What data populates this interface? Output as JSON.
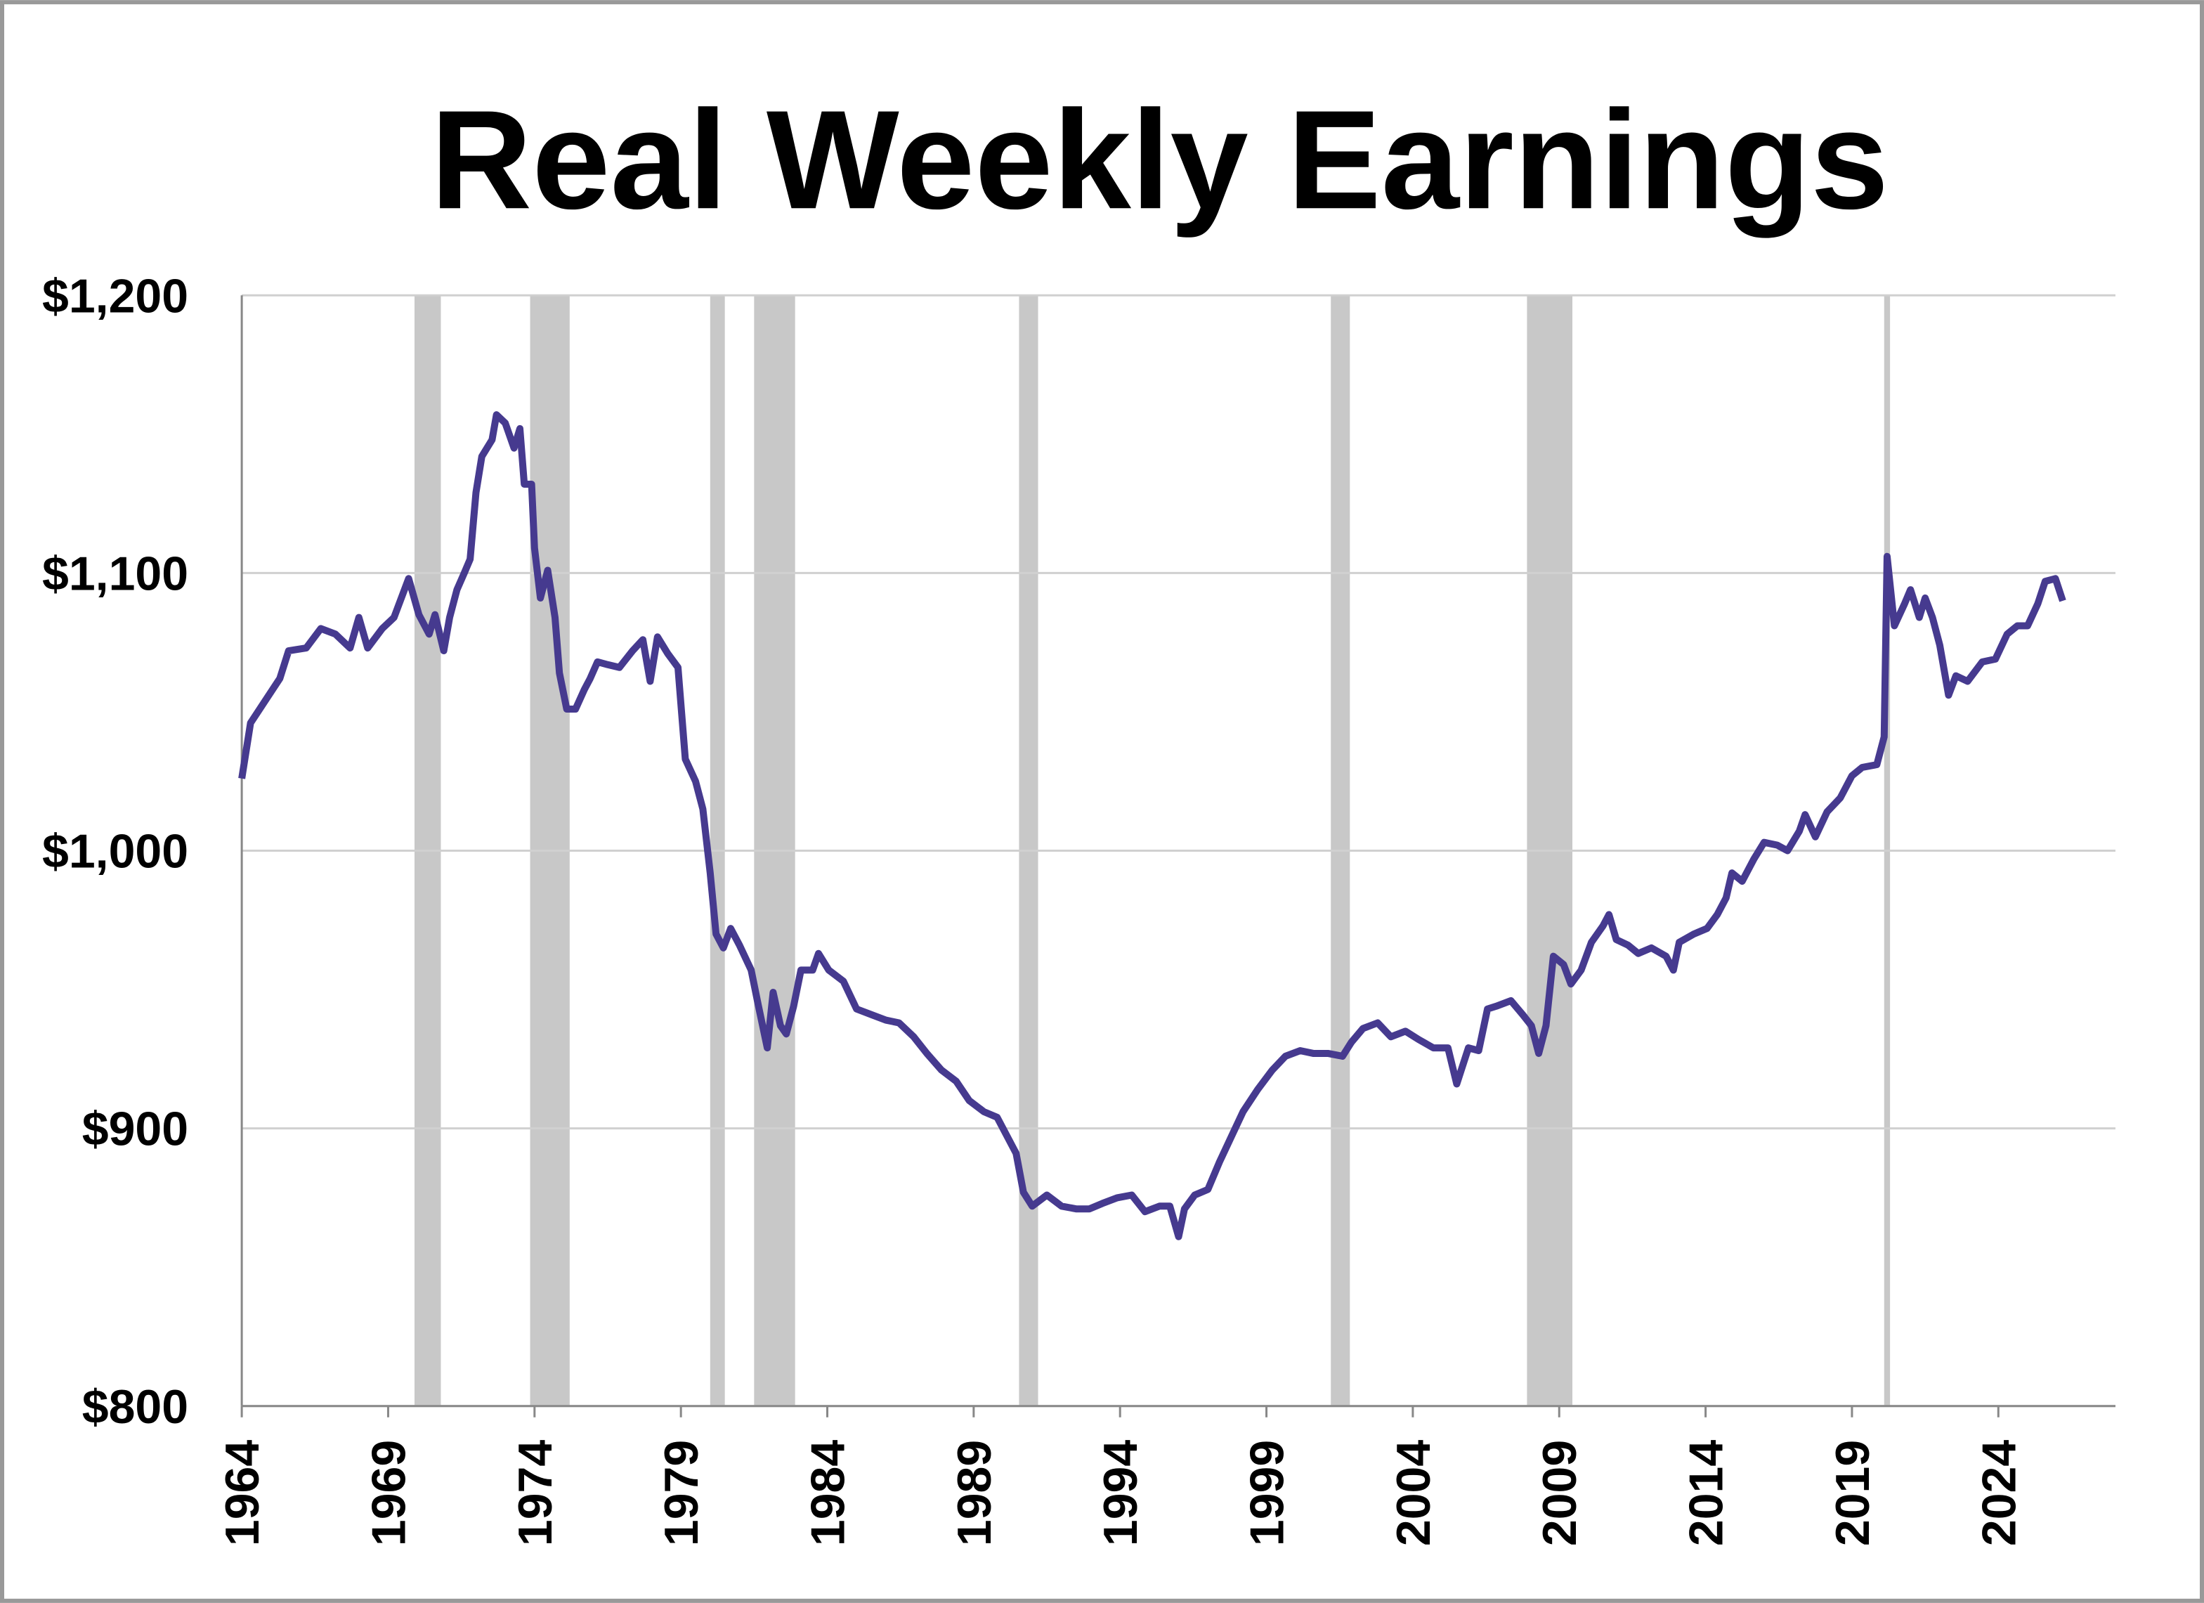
{
  "chart_data": {
    "type": "line",
    "title": "Real Weekly Earnings",
    "color": "#463a8f",
    "recession_color": "#c8c8c8",
    "x": [
      1964.0,
      1964.3,
      1964.8,
      1965.3,
      1965.6,
      1966.2,
      1966.7,
      1967.2,
      1967.7,
      1968.0,
      1968.3,
      1968.8,
      1969.2,
      1969.7,
      1970.05,
      1970.4,
      1970.6,
      1970.9,
      1971.1,
      1971.35,
      1971.6,
      1971.8,
      1972.0,
      1972.2,
      1972.55,
      1972.7,
      1973.0,
      1973.3,
      1973.5,
      1973.65,
      1973.9,
      1974.0,
      1974.2,
      1974.45,
      1974.7,
      1974.85,
      1975.1,
      1975.4,
      1975.7,
      1975.9,
      1976.15,
      1976.5,
      1976.9,
      1977.35,
      1977.7,
      1977.95,
      1978.2,
      1978.55,
      1978.9,
      1979.15,
      1979.5,
      1979.75,
      1980.0,
      1980.2,
      1980.45,
      1980.7,
      1981.0,
      1981.4,
      1981.65,
      1981.95,
      1982.15,
      1982.4,
      1982.6,
      1982.85,
      1983.1,
      1983.5,
      1983.7,
      1984.05,
      1984.55,
      1985.0,
      1985.5,
      1986.0,
      1986.45,
      1986.95,
      1987.4,
      1987.9,
      1988.4,
      1988.85,
      1989.35,
      1989.8,
      1990.2,
      1990.45,
      1990.7,
      1991.0,
      1991.5,
      1992.0,
      1992.5,
      1992.95,
      1993.4,
      1993.9,
      1994.4,
      1994.85,
      1995.35,
      1995.7,
      1996.0,
      1996.2,
      1996.55,
      1997.0,
      1997.4,
      1997.8,
      1998.2,
      1998.7,
      1999.2,
      1999.65,
      2000.15,
      2000.6,
      2001.1,
      2001.6,
      2001.9,
      2002.3,
      2002.8,
      2003.25,
      2003.75,
      2004.2,
      2004.7,
      2005.2,
      2005.5,
      2005.9,
      2006.25,
      2006.55,
      2006.85,
      2007.35,
      2007.75,
      2008.05,
      2008.3,
      2008.55,
      2008.8,
      2009.15,
      2009.4,
      2009.75,
      2010.1,
      2010.5,
      2010.7,
      2010.95,
      2011.35,
      2011.7,
      2012.15,
      2012.65,
      2012.9,
      2013.1,
      2013.6,
      2014.05,
      2014.4,
      2014.7,
      2014.9,
      2015.25,
      2015.65,
      2016.0,
      2016.45,
      2016.8,
      2017.2,
      2017.4,
      2017.75,
      2018.15,
      2018.6,
      2019.0,
      2019.35,
      2019.85,
      2020.1,
      2020.2,
      2020.45,
      2020.8,
      2021.0,
      2021.3,
      2021.5,
      2021.75,
      2022.0,
      2022.3,
      2022.55,
      2022.95,
      2023.45,
      2023.9,
      2024.3,
      2024.65,
      2025.0,
      2025.35,
      2025.6,
      2025.95,
      2026.2
    ],
    "values": [
      1026,
      1046,
      1054,
      1062,
      1072,
      1073,
      1080,
      1078,
      1073,
      1084,
      1073,
      1080,
      1084,
      1098,
      1085,
      1078,
      1085,
      1072,
      1084,
      1094,
      1100,
      1105,
      1129,
      1142,
      1148,
      1157,
      1154,
      1145,
      1152,
      1132,
      1132,
      1109,
      1091,
      1101,
      1084,
      1064,
      1051,
      1051,
      1058,
      1062,
      1068,
      1067,
      1066,
      1072,
      1076,
      1061,
      1077,
      1071,
      1066,
      1033,
      1025,
      1015,
      992,
      970,
      965,
      972,
      966,
      957,
      944,
      929,
      949,
      937,
      934,
      944,
      957,
      957,
      963,
      957,
      953,
      943,
      941,
      939,
      938,
      933,
      927,
      921,
      917,
      910,
      906,
      904,
      896,
      891,
      877,
      872,
      876,
      872,
      871,
      871,
      873,
      875,
      876,
      870,
      872,
      872,
      861,
      871,
      876,
      878,
      888,
      897,
      906,
      914,
      921,
      926,
      928,
      927,
      927,
      926,
      931,
      936,
      938,
      933,
      935,
      932,
      929,
      929,
      916,
      929,
      928,
      943,
      944,
      946,
      941,
      937,
      927,
      937,
      962,
      959,
      952,
      957,
      967,
      973,
      977,
      968,
      966,
      963,
      965,
      962,
      957,
      967,
      970,
      972,
      977,
      983,
      992,
      989,
      997,
      1003,
      1002,
      1000,
      1007,
      1013,
      1005,
      1014,
      1019,
      1027,
      1030,
      1031,
      1041,
      1106,
      1081,
      1089,
      1094,
      1084,
      1091,
      1084,
      1074,
      1056,
      1063,
      1061,
      1068,
      1069,
      1078,
      1081,
      1081,
      1089,
      1097,
      1098,
      1090
    ],
    "recessions": [
      [
        1969.9,
        1970.8
      ],
      [
        1973.85,
        1975.2
      ],
      [
        1980.0,
        1980.5
      ],
      [
        1981.5,
        1982.9
      ],
      [
        1990.55,
        1991.2
      ],
      [
        2001.2,
        2001.85
      ],
      [
        2007.9,
        2009.45
      ],
      [
        2020.1,
        2020.3
      ]
    ],
    "xlim": [
      1964,
      2028
    ],
    "ylim": [
      800,
      1200
    ],
    "xticks": [
      1964,
      1969,
      1974,
      1979,
      1984,
      1989,
      1994,
      1999,
      2004,
      2009,
      2014,
      2019,
      2024
    ],
    "yticks": [
      {
        "value": 800,
        "label": "$800"
      },
      {
        "value": 900,
        "label": "$900"
      },
      {
        "value": 1000,
        "label": "$1,000"
      },
      {
        "value": 1100,
        "label": "$1,100"
      },
      {
        "value": 1200,
        "label": "$1,200"
      }
    ],
    "grid": true
  }
}
